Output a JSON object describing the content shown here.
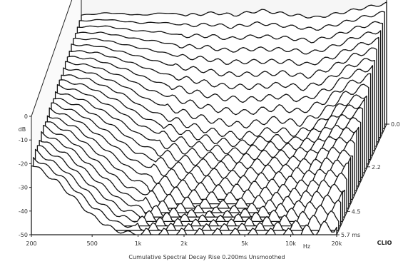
{
  "chart_data": {
    "type": "waterfall",
    "caption": "Cumulative Spectral Decay  Rise 0.200ms  Unsmoothed",
    "brand": "CLIO",
    "x_axis": {
      "scale": "log",
      "range": [
        200,
        20000
      ],
      "unit": "Hz",
      "ticks": [
        {
          "value": 200,
          "label": "200"
        },
        {
          "value": 500,
          "label": "500"
        },
        {
          "value": 1000,
          "label": "1k"
        },
        {
          "value": 2000,
          "label": "2k"
        },
        {
          "value": 5000,
          "label": "5k"
        },
        {
          "value": 10000,
          "label": "10k"
        },
        {
          "value": 20000,
          "label": "20k"
        }
      ]
    },
    "y_axis": {
      "unit": "dB",
      "range": [
        -50,
        0
      ],
      "ticks": [
        {
          "value": 0,
          "label": "0"
        },
        {
          "value": -10,
          "label": "-10"
        },
        {
          "value": -20,
          "label": "-20"
        },
        {
          "value": -30,
          "label": "-30"
        },
        {
          "value": -40,
          "label": "-40"
        },
        {
          "value": -50,
          "label": "-50"
        }
      ],
      "unit_label": "dB"
    },
    "z_axis": {
      "unit": "ms",
      "range": [
        0,
        5.7
      ],
      "ticks": [
        {
          "value": 0,
          "label": "0.0"
        },
        {
          "value": 2.2,
          "label": "2.2"
        },
        {
          "value": 4.5,
          "label": "4.5"
        },
        {
          "value": 5.7,
          "label": "5.7 ms"
        }
      ]
    },
    "x_unit_label": "Hz",
    "series_count": 26,
    "series": [
      {
        "time_ms": 0.0,
        "freq_hz": [
          200,
          300,
          500,
          700,
          1000,
          1500,
          2000,
          3000,
          5000,
          7000,
          10000,
          14000,
          20000
        ],
        "level_db": [
          -4,
          -3,
          -4,
          -3,
          -4,
          -3,
          -4,
          -2,
          -4,
          -5,
          -3,
          -1,
          1
        ]
      },
      {
        "time_ms": 2.2,
        "freq_hz": [
          200,
          300,
          500,
          700,
          1000,
          1500,
          2000,
          3000,
          5000,
          7000,
          10000,
          14000,
          20000
        ],
        "level_db": [
          -10,
          -12,
          -18,
          -24,
          -28,
          -32,
          -34,
          -36,
          -33,
          -35,
          -30,
          -22,
          -18
        ]
      },
      {
        "time_ms": 4.5,
        "freq_hz": [
          200,
          300,
          500,
          700,
          1000,
          1500,
          2000,
          3000,
          5000,
          7000,
          10000,
          14000,
          20000
        ],
        "level_db": [
          -16,
          -22,
          -34,
          -42,
          -46,
          -48,
          -49,
          -50,
          -48,
          -46,
          -44,
          -38,
          -34
        ]
      },
      {
        "time_ms": 5.7,
        "freq_hz": [
          200,
          300,
          500,
          700,
          1000,
          1500,
          2000,
          3000,
          5000,
          7000,
          10000,
          14000,
          20000
        ],
        "level_db": [
          -20,
          -28,
          -42,
          -48,
          -50,
          -50,
          -50,
          -50,
          -50,
          -50,
          -50,
          -48,
          -46
        ]
      }
    ]
  }
}
